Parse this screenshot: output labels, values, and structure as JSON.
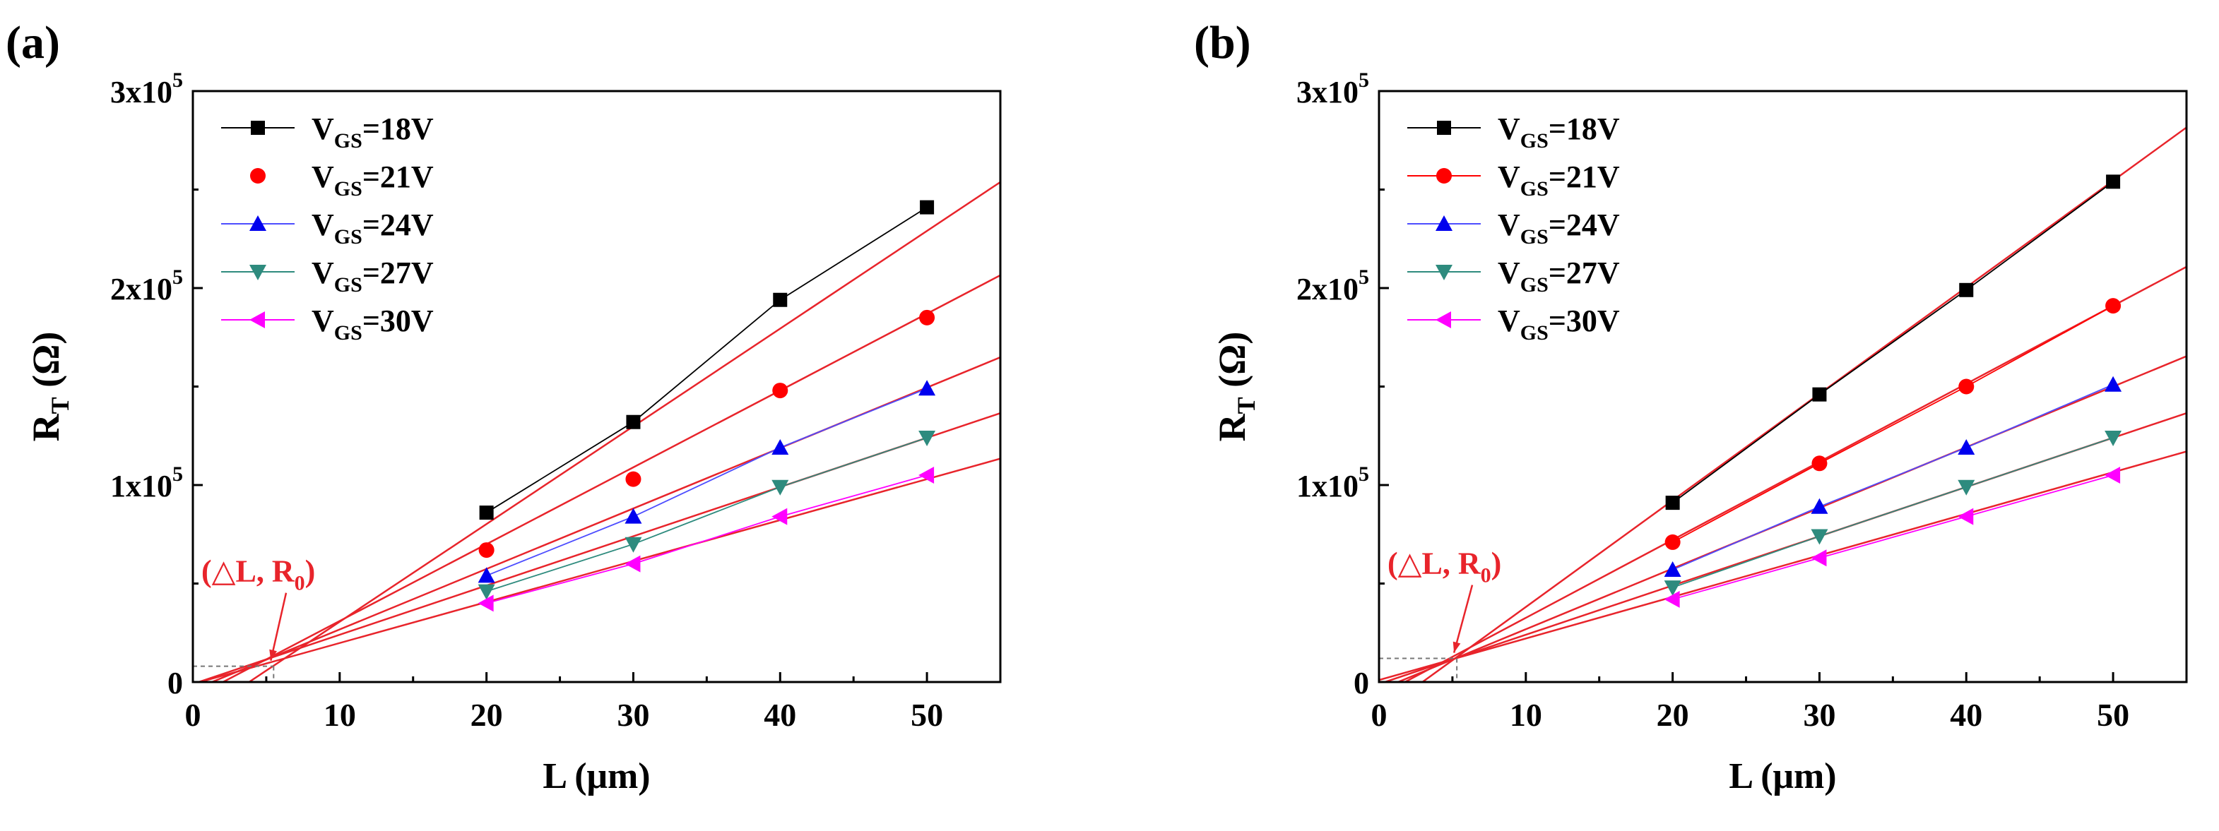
{
  "chart_data": [
    {
      "type": "scatter",
      "panel_label": "(a)",
      "xlabel": "L (μm)",
      "ylabel": {
        "main": "R",
        "sub": "T",
        "unit": " (Ω)"
      },
      "xlim": [
        0,
        55
      ],
      "ylim": [
        0,
        300000
      ],
      "xticks": [
        0,
        10,
        20,
        30,
        40,
        50
      ],
      "xtick_labels": [
        "0",
        "10",
        "20",
        "30",
        "40",
        "50"
      ],
      "yticks": [
        0,
        100000,
        200000,
        300000
      ],
      "ytick_labels": [
        {
          "base": "0",
          "exp": ""
        },
        {
          "base": "1x10",
          "exp": "5"
        },
        {
          "base": "2x10",
          "exp": "5"
        },
        {
          "base": "3x10",
          "exp": "5"
        }
      ],
      "annotation": {
        "text_open": "(",
        "symbol": "△",
        "text_mid": "L, R",
        "sub": "0",
        "text_close": ")",
        "point": [
          5.5,
          8000
        ]
      },
      "x": [
        20,
        30,
        40,
        50
      ],
      "series": [
        {
          "name": "VGS=18V",
          "label_main": "V",
          "label_sub": "GS",
          "label_rest": "=18V",
          "marker": "square",
          "color": "#000000",
          "line_color": "#000000",
          "values": [
            86000,
            132000,
            194000,
            241000
          ],
          "fit": {
            "slope": 4960,
            "intercept": -19000
          }
        },
        {
          "name": "VGS=21V",
          "label_main": "V",
          "label_sub": "GS",
          "label_rest": "=21V",
          "marker": "circle",
          "color": "#ff0000",
          "line_color": "",
          "values": [
            67000,
            103000,
            148000,
            185000
          ],
          "fit": {
            "slope": 3900,
            "intercept": -8000
          }
        },
        {
          "name": "VGS=24V",
          "label_main": "V",
          "label_sub": "GS",
          "label_rest": "=24V",
          "marker": "triangle-up",
          "color": "#0000ee",
          "line_color": "#4d4dff",
          "values": [
            54000,
            84000,
            119000,
            149000
          ],
          "fit": {
            "slope": 3070,
            "intercept": -4000
          }
        },
        {
          "name": "VGS=27V",
          "label_main": "V",
          "label_sub": "GS",
          "label_rest": "=27V",
          "marker": "triangle-down",
          "color": "#2e8b7e",
          "line_color": "#2e8b7e",
          "values": [
            46000,
            70000,
            99000,
            124000
          ],
          "fit": {
            "slope": 2500,
            "intercept": -1000
          }
        },
        {
          "name": "VGS=30V",
          "label_main": "V",
          "label_sub": "GS",
          "label_rest": "=30V",
          "marker": "triangle-left",
          "color": "#ff00ff",
          "line_color": "#ff00ff",
          "values": [
            40000,
            60000,
            84000,
            105000
          ],
          "fit": {
            "slope": 2080,
            "intercept": -1000
          }
        }
      ]
    },
    {
      "type": "scatter",
      "panel_label": "(b)",
      "xlabel": "L (μm)",
      "ylabel": {
        "main": "R",
        "sub": "T",
        "unit": " (Ω)"
      },
      "xlim": [
        0,
        55
      ],
      "ylim": [
        0,
        300000
      ],
      "xticks": [
        0,
        10,
        20,
        30,
        40,
        50
      ],
      "xtick_labels": [
        "0",
        "10",
        "20",
        "30",
        "40",
        "50"
      ],
      "yticks": [
        0,
        100000,
        200000,
        300000
      ],
      "ytick_labels": [
        {
          "base": "0",
          "exp": ""
        },
        {
          "base": "1x10",
          "exp": "5"
        },
        {
          "base": "2x10",
          "exp": "5"
        },
        {
          "base": "3x10",
          "exp": "5"
        }
      ],
      "annotation": {
        "text_open": "(",
        "symbol": "△",
        "text_mid": "L, R",
        "sub": "0",
        "text_close": ")",
        "point": [
          5.3,
          12000
        ]
      },
      "x": [
        20,
        30,
        40,
        50
      ],
      "series": [
        {
          "name": "VGS=18V",
          "label_main": "V",
          "label_sub": "GS",
          "label_rest": "=18V",
          "marker": "square",
          "color": "#000000",
          "line_color": "#000000",
          "values": [
            91000,
            146000,
            199000,
            254000
          ],
          "fit": {
            "slope": 5410,
            "intercept": -16000
          }
        },
        {
          "name": "VGS=21V",
          "label_main": "V",
          "label_sub": "GS",
          "label_rest": "=21V",
          "marker": "circle",
          "color": "#ff0000",
          "line_color": "#ff0000",
          "values": [
            71000,
            111000,
            150000,
            191000
          ],
          "fit": {
            "slope": 3960,
            "intercept": -7000
          }
        },
        {
          "name": "VGS=24V",
          "label_main": "V",
          "label_sub": "GS",
          "label_rest": "=24V",
          "marker": "triangle-up",
          "color": "#0000ee",
          "line_color": "#4d4dff",
          "values": [
            57000,
            89000,
            119000,
            151000
          ],
          "fit": {
            "slope": 3080,
            "intercept": -4000
          }
        },
        {
          "name": "VGS=27V",
          "label_main": "V",
          "label_sub": "GS",
          "label_rest": "=27V",
          "marker": "triangle-down",
          "color": "#2e8b7e",
          "line_color": "#2e8b7e",
          "values": [
            48000,
            74000,
            99000,
            124000
          ],
          "fit": {
            "slope": 2500,
            "intercept": -1000
          }
        },
        {
          "name": "VGS=30V",
          "label_main": "V",
          "label_sub": "GS",
          "label_rest": "=30V",
          "marker": "triangle-left",
          "color": "#ff00ff",
          "line_color": "#ff00ff",
          "values": [
            42000,
            63000,
            84000,
            105000
          ],
          "fit": {
            "slope": 2110,
            "intercept": 1000
          }
        }
      ]
    }
  ],
  "colors": {
    "fit_line": "#e8242b",
    "axis": "#000000",
    "annotation": "#e8242b",
    "guide": "#777777"
  }
}
